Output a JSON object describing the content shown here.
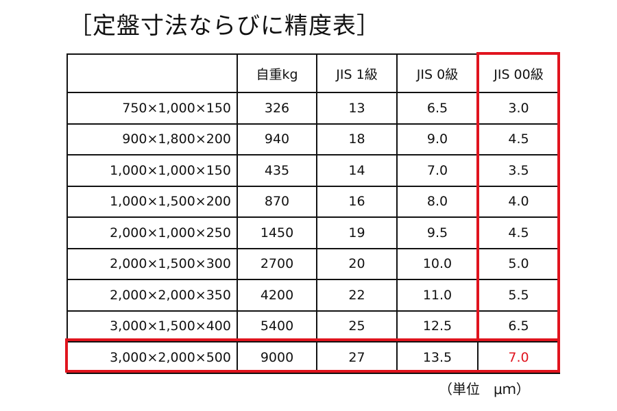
{
  "title": "［定盤寸法ならびに精度表］",
  "table": {
    "header": [
      "",
      "自重kg",
      "JIS 1級",
      "JIS 0級",
      "JIS 00級"
    ],
    "rows": [
      [
        "750×1,000×150",
        "326",
        "13",
        "6.5",
        "3.0"
      ],
      [
        "900×1,800×200",
        "940",
        "18",
        "9.0",
        "4.5"
      ],
      [
        "1,000×1,000×150",
        "435",
        "14",
        "7.0",
        "3.5"
      ],
      [
        "1,000×1,500×200",
        "870",
        "16",
        "8.0",
        "4.0"
      ],
      [
        "2,000×1,000×250",
        "1450",
        "19",
        "9.5",
        "4.5"
      ],
      [
        "2,000×1,500×300",
        "2700",
        "20",
        "10.0",
        "5.0"
      ],
      [
        "2,000×2,000×350",
        "4200",
        "22",
        "11.0",
        "5.5"
      ],
      [
        "3,000×1,500×400",
        "5400",
        "25",
        "12.5",
        "6.5"
      ],
      [
        "3,000×2,000×500",
        "9000",
        "27",
        "13.5",
        "7.0"
      ]
    ]
  },
  "unit_note": "（単位　μｍ）"
}
